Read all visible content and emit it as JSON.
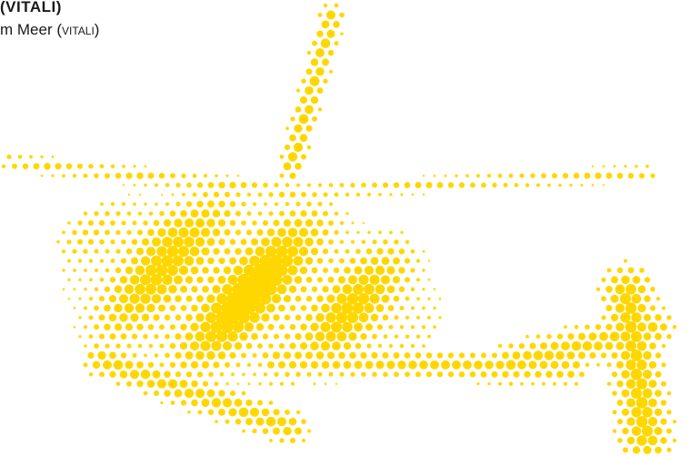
{
  "caption": {
    "line1": "(VITALI)",
    "line2_prefix": "m Meer (",
    "line2_caps": "VITALI",
    "line2_suffix": ")"
  },
  "artwork": {
    "description_icon": "halftone-helicopter-icon",
    "dot_color": "#ffd700"
  }
}
